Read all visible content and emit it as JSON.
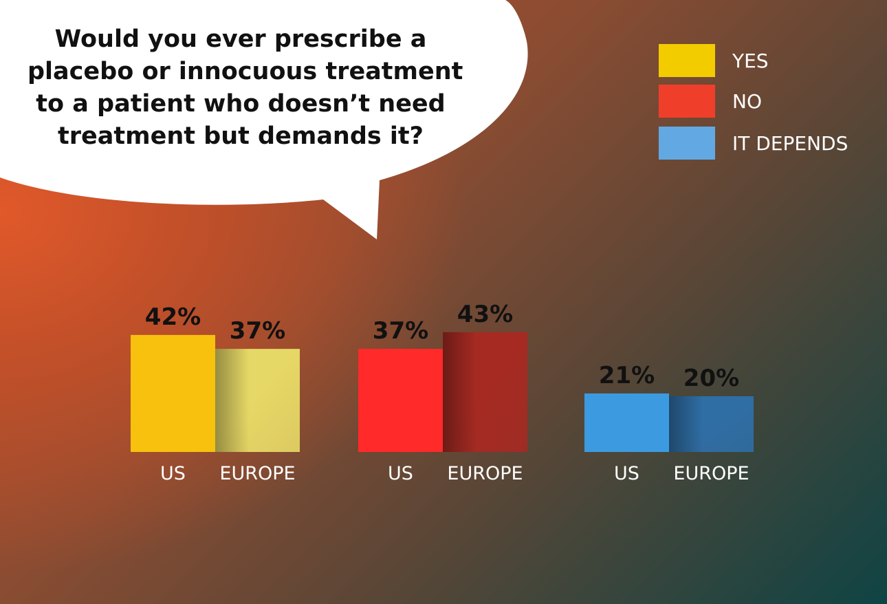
{
  "question_lines": [
    "Would you ever prescribe a",
    "placebo or innocuous treatment",
    "to a patient who doesn’t need",
    "treatment but demands it?"
  ],
  "legend": [
    {
      "label": "YES",
      "color": "#f3cc00"
    },
    {
      "label": "NO",
      "color": "#ef3f2b"
    },
    {
      "label": "IT DEPENDS",
      "color": "#62a9e3"
    }
  ],
  "chart_data": {
    "type": "bar",
    "title": "",
    "categories": [
      "US",
      "EUROPE"
    ],
    "series": [
      {
        "name": "YES",
        "values": [
          42,
          37
        ],
        "labels": [
          "42%",
          "37%"
        ],
        "colors": [
          "#f7c10e",
          "#e6d866"
        ]
      },
      {
        "name": "NO",
        "values": [
          37,
          43
        ],
        "labels": [
          "37%",
          "43%"
        ],
        "colors": [
          "#ff2a29",
          "#a62a22"
        ]
      },
      {
        "name": "IT DEPENDS",
        "values": [
          21,
          20
        ],
        "labels": [
          "21%",
          "20%"
        ],
        "colors": [
          "#3c9be0",
          "#2f6ea5"
        ]
      }
    ],
    "ylim": [
      0,
      100
    ],
    "grid": false,
    "legend": "top-right"
  }
}
